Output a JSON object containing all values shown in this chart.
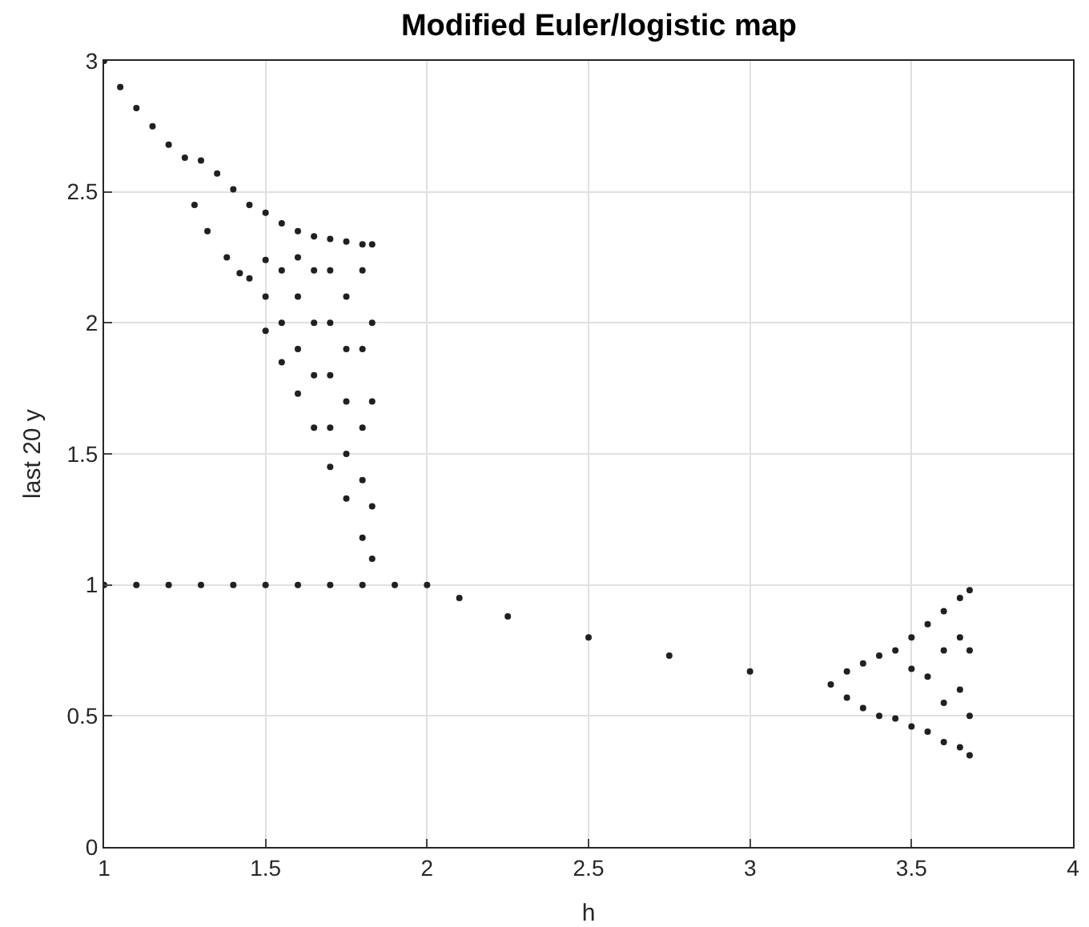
{
  "chart_data": {
    "type": "scatter",
    "title": "Modified Euler/logistic map",
    "xlabel": "h",
    "ylabel": "last 20 y",
    "xlim": [
      1,
      4
    ],
    "ylim": [
      0,
      3
    ],
    "xticks": [
      1,
      1.5,
      2,
      2.5,
      3,
      3.5,
      4
    ],
    "yticks": [
      0,
      0.5,
      1,
      1.5,
      2,
      2.5,
      3
    ],
    "grid": true,
    "marker": "circle",
    "series": [
      {
        "color": "#231f20",
        "x": [
          1,
          1.05,
          1.1,
          1.15,
          1.2,
          1.25,
          1.3,
          1.35,
          1.4,
          1.45,
          1.5,
          1.55,
          1.6,
          1.65,
          1.7,
          1.75,
          1.8,
          1.83,
          1.28,
          1.32,
          1.38,
          1.42,
          1.45,
          1.5,
          1.5,
          1.55,
          1.6,
          1.65,
          1.7,
          1.75,
          1.8,
          1.83,
          1.5,
          1.55,
          1.55,
          1.6,
          1.6,
          1.6,
          1.65,
          1.65,
          1.65,
          1.7,
          1.7,
          1.7,
          1.7,
          1.75,
          1.75,
          1.75,
          1.75,
          1.8,
          1.8,
          1.8,
          1.8,
          1.83,
          1.83,
          1.83
        ],
        "values": [
          3,
          2.9,
          2.82,
          2.75,
          2.68,
          2.63,
          2.62,
          2.57,
          2.51,
          2.45,
          2.42,
          2.38,
          2.35,
          2.33,
          2.32,
          2.31,
          2.3,
          2.3,
          2.45,
          2.35,
          2.25,
          2.19,
          2.17,
          2.24,
          1.97,
          1.85,
          1.73,
          1.6,
          1.45,
          1.33,
          1.18,
          1.1,
          2.1,
          2.2,
          2.0,
          2.25,
          2.1,
          1.9,
          2.2,
          2.0,
          1.8,
          2.2,
          2.0,
          1.8,
          1.6,
          2.1,
          1.9,
          1.7,
          1.5,
          2.2,
          1.9,
          1.6,
          1.4,
          2.0,
          1.7,
          1.3
        ]
      },
      {
        "color": "#231f20",
        "x": [
          1,
          1.1,
          1.2,
          1.3,
          1.4,
          1.5,
          1.6,
          1.7,
          1.8,
          1.9,
          2,
          2.1,
          2.25,
          2.5,
          2.75,
          3,
          3.25,
          3.3,
          3.35,
          3.4,
          3.45,
          3.3,
          3.35,
          3.4,
          3.45,
          3.5,
          3.5,
          3.5,
          3.55,
          3.55,
          3.55,
          3.6,
          3.6,
          3.6,
          3.6,
          3.65,
          3.65,
          3.65,
          3.65,
          3.68,
          3.68,
          3.68,
          3.68
        ],
        "values": [
          1,
          1,
          1,
          1,
          1,
          1,
          1,
          1,
          1,
          1,
          1,
          0.95,
          0.88,
          0.8,
          0.73,
          0.67,
          0.62,
          0.67,
          0.7,
          0.73,
          0.75,
          0.57,
          0.53,
          0.5,
          0.49,
          0.8,
          0.68,
          0.46,
          0.85,
          0.65,
          0.44,
          0.9,
          0.75,
          0.55,
          0.4,
          0.95,
          0.8,
          0.6,
          0.38,
          0.98,
          0.75,
          0.5,
          0.35
        ]
      }
    ]
  }
}
